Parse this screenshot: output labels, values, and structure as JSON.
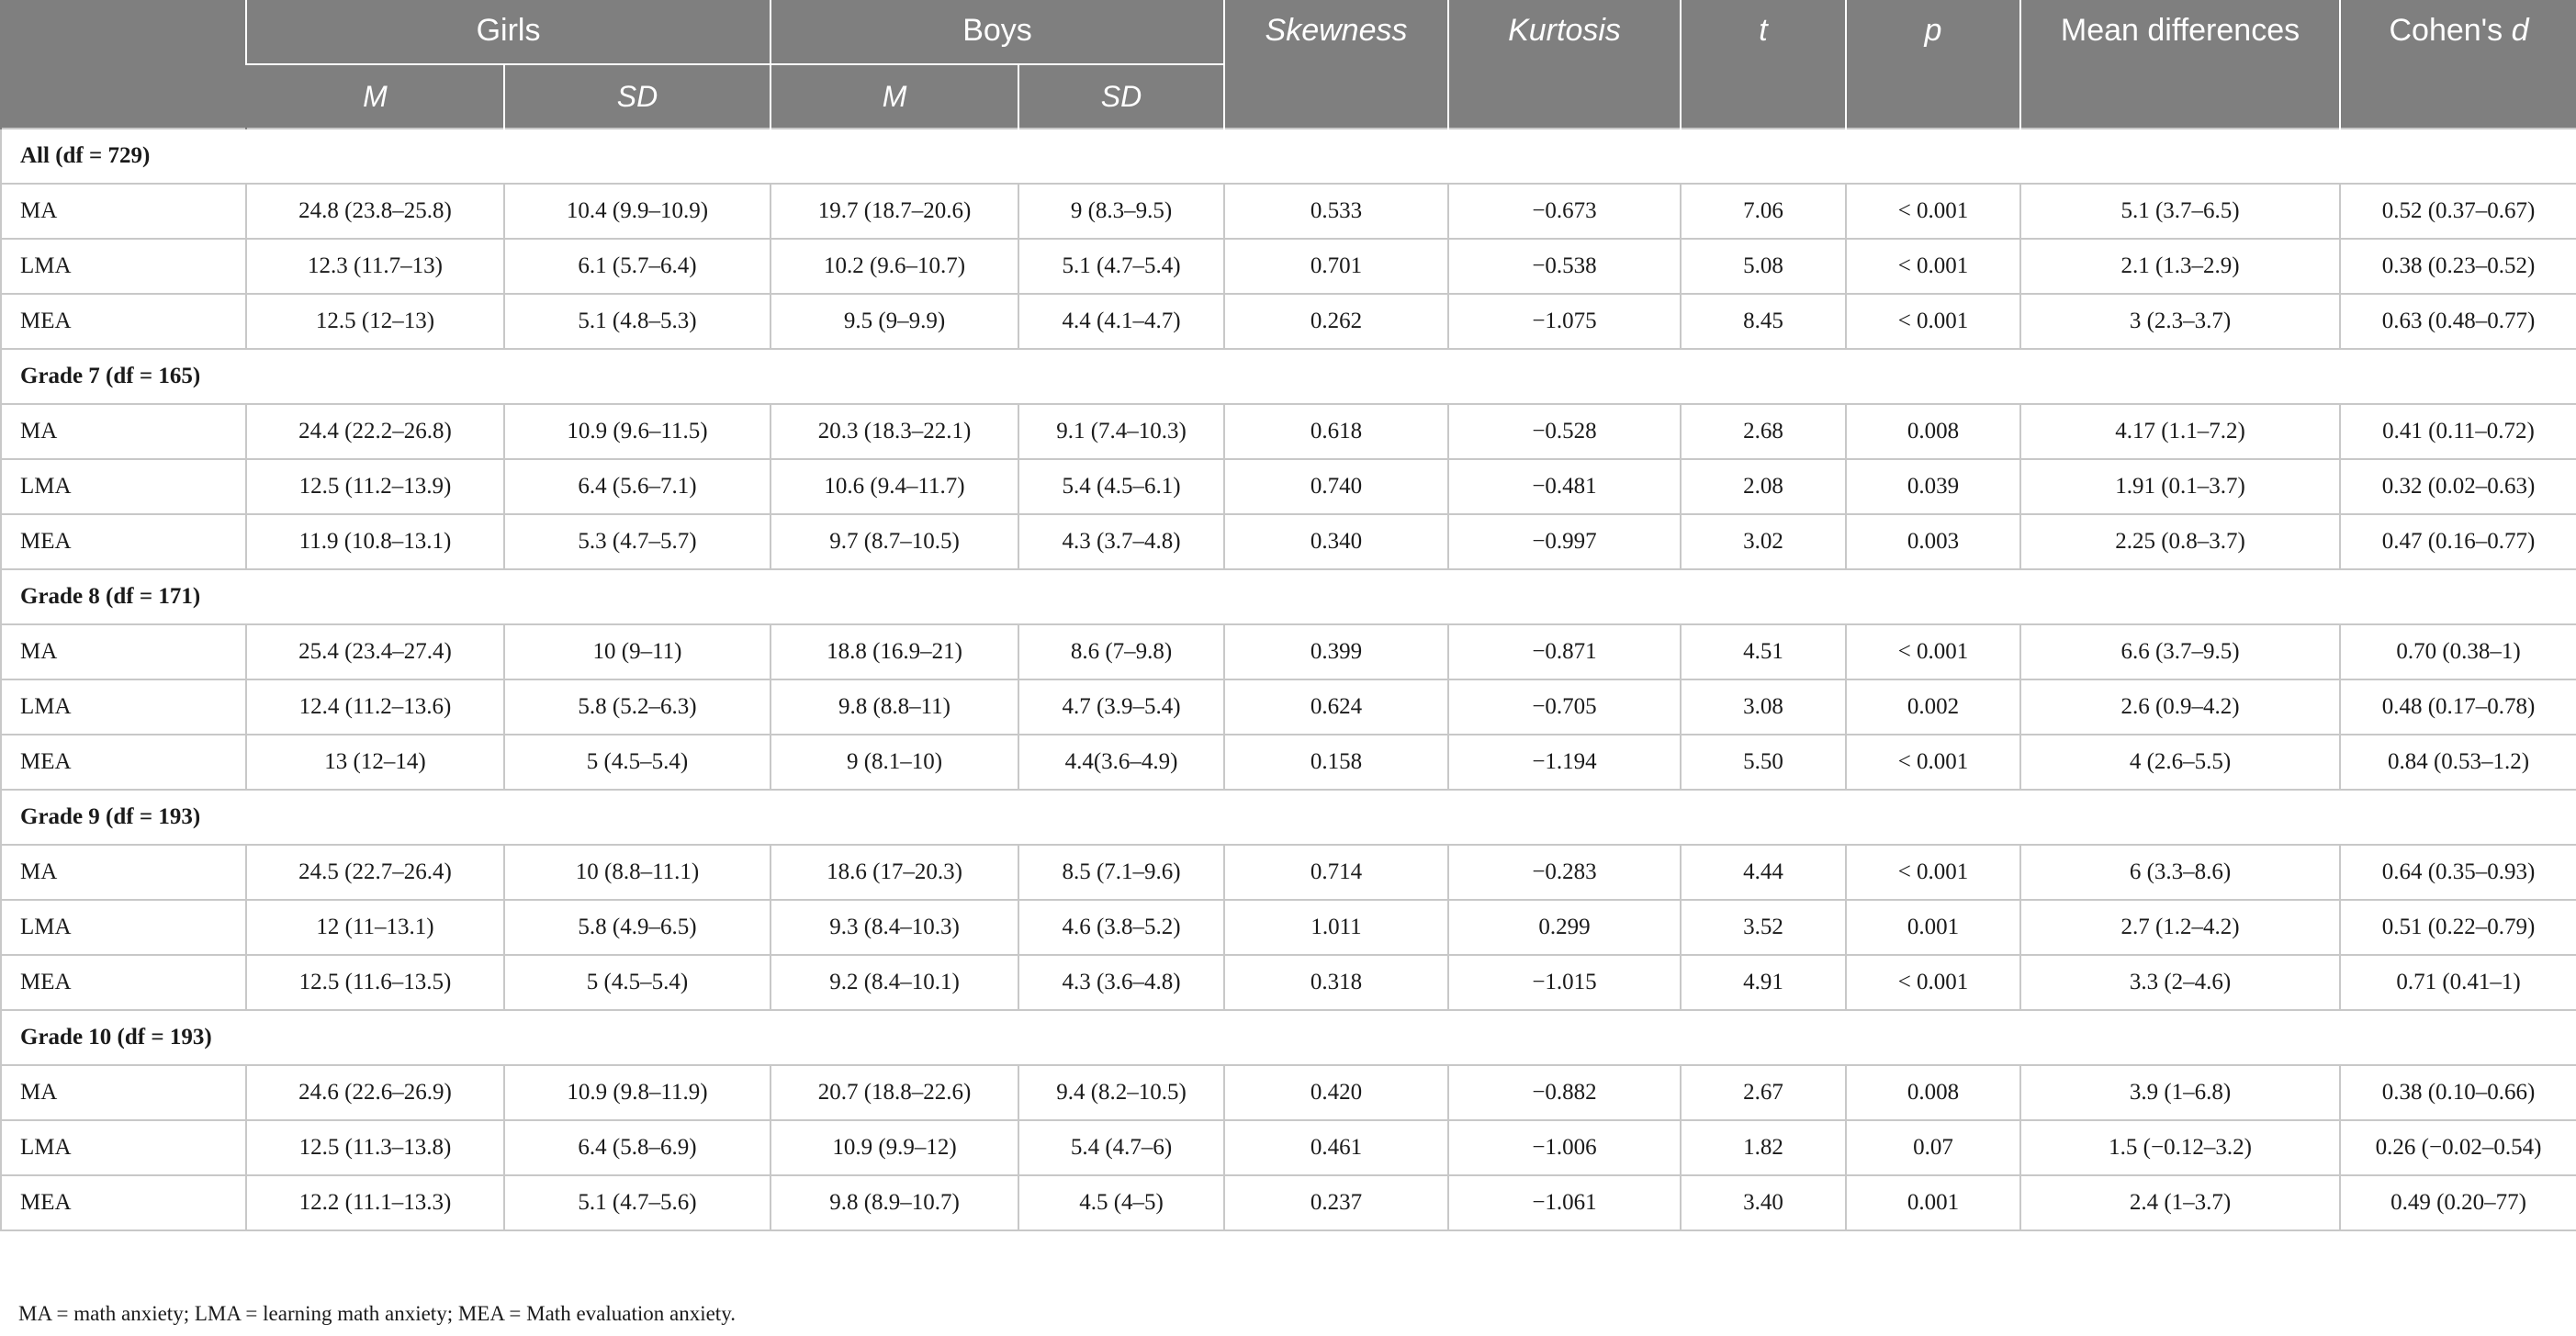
{
  "header": {
    "girls": "Girls",
    "boys": "Boys",
    "m": "M",
    "sd": "SD",
    "skewness": "Skewness",
    "kurtosis": "Kurtosis",
    "t": "t",
    "p": "p",
    "mean_differences": "Mean differences",
    "cohens_prefix": "Cohen's ",
    "cohens_d": "d"
  },
  "sections": [
    {
      "title": "All (df = 729)",
      "rows": [
        [
          "MA",
          "24.8 (23.8–25.8)",
          "10.4 (9.9–10.9)",
          "19.7 (18.7–20.6)",
          "9 (8.3–9.5)",
          "0.533",
          "−0.673",
          "7.06",
          "< 0.001",
          "5.1 (3.7–6.5)",
          "0.52 (0.37–0.67)"
        ],
        [
          "LMA",
          "12.3 (11.7–13)",
          "6.1 (5.7–6.4)",
          "10.2 (9.6–10.7)",
          "5.1 (4.7–5.4)",
          "0.701",
          "−0.538",
          "5.08",
          "< 0.001",
          "2.1 (1.3–2.9)",
          "0.38 (0.23–0.52)"
        ],
        [
          "MEA",
          "12.5 (12–13)",
          "5.1 (4.8–5.3)",
          "9.5 (9–9.9)",
          "4.4 (4.1–4.7)",
          "0.262",
          "−1.075",
          "8.45",
          "< 0.001",
          "3 (2.3–3.7)",
          "0.63 (0.48–0.77)"
        ]
      ]
    },
    {
      "title": "Grade 7 (df = 165)",
      "rows": [
        [
          "MA",
          "24.4 (22.2–26.8)",
          "10.9 (9.6–11.5)",
          "20.3 (18.3–22.1)",
          "9.1 (7.4–10.3)",
          "0.618",
          "−0.528",
          "2.68",
          "0.008",
          "4.17 (1.1–7.2)",
          "0.41 (0.11–0.72)"
        ],
        [
          "LMA",
          "12.5 (11.2–13.9)",
          "6.4 (5.6–7.1)",
          "10.6 (9.4–11.7)",
          "5.4 (4.5–6.1)",
          "0.740",
          "−0.481",
          "2.08",
          "0.039",
          "1.91 (0.1–3.7)",
          "0.32 (0.02–0.63)"
        ],
        [
          "MEA",
          "11.9 (10.8–13.1)",
          "5.3 (4.7–5.7)",
          "9.7 (8.7–10.5)",
          "4.3 (3.7–4.8)",
          "0.340",
          "−0.997",
          "3.02",
          "0.003",
          "2.25 (0.8–3.7)",
          "0.47 (0.16–0.77)"
        ]
      ]
    },
    {
      "title": "Grade 8 (df = 171)",
      "rows": [
        [
          "MA",
          "25.4 (23.4–27.4)",
          "10 (9–11)",
          "18.8 (16.9–21)",
          "8.6 (7–9.8)",
          "0.399",
          "−0.871",
          "4.51",
          "< 0.001",
          "6.6 (3.7–9.5)",
          "0.70 (0.38–1)"
        ],
        [
          "LMA",
          "12.4 (11.2–13.6)",
          "5.8 (5.2–6.3)",
          "9.8 (8.8–11)",
          "4.7 (3.9–5.4)",
          "0.624",
          "−0.705",
          "3.08",
          "0.002",
          "2.6 (0.9–4.2)",
          "0.48 (0.17–0.78)"
        ],
        [
          "MEA",
          "13 (12–14)",
          "5 (4.5–5.4)",
          "9 (8.1–10)",
          "4.4(3.6–4.9)",
          "0.158",
          "−1.194",
          "5.50",
          "< 0.001",
          "4 (2.6–5.5)",
          "0.84 (0.53–1.2)"
        ]
      ]
    },
    {
      "title": "Grade 9 (df = 193)",
      "rows": [
        [
          "MA",
          "24.5 (22.7–26.4)",
          "10 (8.8–11.1)",
          "18.6 (17–20.3)",
          "8.5 (7.1–9.6)",
          "0.714",
          "−0.283",
          "4.44",
          "< 0.001",
          "6 (3.3–8.6)",
          "0.64 (0.35–0.93)"
        ],
        [
          "LMA",
          "12 (11–13.1)",
          "5.8 (4.9–6.5)",
          "9.3 (8.4–10.3)",
          "4.6 (3.8–5.2)",
          "1.011",
          "0.299",
          "3.52",
          "0.001",
          "2.7 (1.2–4.2)",
          "0.51 (0.22–0.79)"
        ],
        [
          "MEA",
          "12.5 (11.6–13.5)",
          "5 (4.5–5.4)",
          "9.2 (8.4–10.1)",
          "4.3 (3.6–4.8)",
          "0.318",
          "−1.015",
          "4.91",
          "< 0.001",
          "3.3 (2–4.6)",
          "0.71 (0.41–1)"
        ]
      ]
    },
    {
      "title": "Grade 10 (df = 193)",
      "rows": [
        [
          "MA",
          "24.6 (22.6–26.9)",
          "10.9 (9.8–11.9)",
          "20.7 (18.8–22.6)",
          "9.4 (8.2–10.5)",
          "0.420",
          "−0.882",
          "2.67",
          "0.008",
          "3.9 (1–6.8)",
          "0.38 (0.10–0.66)"
        ],
        [
          "LMA",
          "12.5 (11.3–13.8)",
          "6.4 (5.8–6.9)",
          "10.9 (9.9–12)",
          "5.4 (4.7–6)",
          "0.461",
          "−1.006",
          "1.82",
          "0.07",
          "1.5 (−0.12–3.2)",
          "0.26 (−0.02–0.54)"
        ],
        [
          "MEA",
          "12.2 (11.1–13.3)",
          "5.1 (4.7–5.6)",
          "9.8 (8.9–10.7)",
          "4.5 (4–5)",
          "0.237",
          "−1.061",
          "3.40",
          "0.001",
          "2.4 (1–3.7)",
          "0.49 (0.20–77)"
        ]
      ]
    }
  ],
  "footnote": "MA = math anxiety; LMA = learning math anxiety; MEA = Math evaluation anxiety."
}
